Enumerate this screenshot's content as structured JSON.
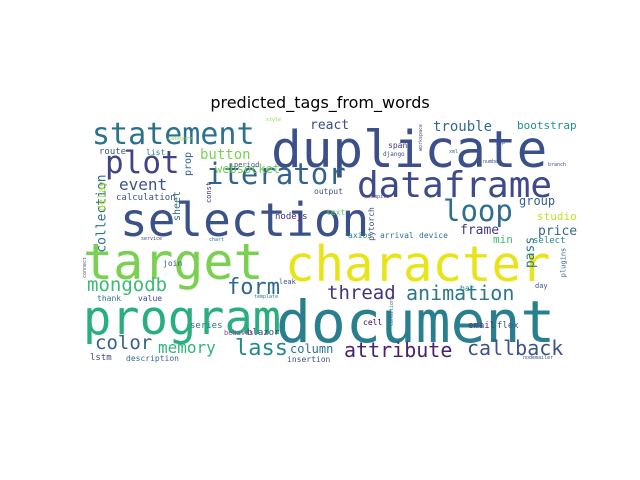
{
  "title": "predicted_tags_from_words",
  "words": [
    {
      "text": "document",
      "color": "#2a7f8e"
    },
    {
      "text": "selection",
      "color": "#3b518a"
    },
    {
      "text": "duplicate",
      "color": "#3b4f8a"
    },
    {
      "text": "character",
      "color": "#e8e419"
    },
    {
      "text": "target",
      "color": "#7ad151"
    },
    {
      "text": "program",
      "color": "#29af7f"
    },
    {
      "text": "dataframe",
      "color": "#3e4a89"
    },
    {
      "text": "statement",
      "color": "#2c728e"
    },
    {
      "text": "plot",
      "color": "#414487"
    },
    {
      "text": "iterator",
      "color": "#33638d"
    },
    {
      "text": "loop",
      "color": "#2e6e8e"
    },
    {
      "text": "animation",
      "color": "#2a778e"
    },
    {
      "text": "callback",
      "color": "#3a538b"
    },
    {
      "text": "attribute",
      "color": "#482173"
    },
    {
      "text": "form",
      "color": "#31688e"
    },
    {
      "text": "thread",
      "color": "#46337e"
    },
    {
      "text": "mongodb",
      "color": "#3bbb75"
    },
    {
      "text": "color",
      "color": "#34618d"
    },
    {
      "text": "lass",
      "color": "#23898e"
    },
    {
      "text": "memory",
      "color": "#2fb47c"
    },
    {
      "text": "event",
      "color": "#3b528b"
    },
    {
      "text": "button",
      "color": "#7ad151"
    },
    {
      "text": "react",
      "color": "#3e4c8a"
    },
    {
      "text": "trouble",
      "color": "#306a8e"
    },
    {
      "text": "bootstrap",
      "color": "#21918c"
    },
    {
      "text": "collection",
      "color": "#2c728e"
    },
    {
      "text": "websocket",
      "color": "#75d054"
    },
    {
      "text": "frame",
      "color": "#453781"
    },
    {
      "text": "group",
      "color": "#355f8d"
    },
    {
      "text": "price",
      "color": "#31688e"
    },
    {
      "text": "pass",
      "color": "#2a788e"
    },
    {
      "text": "studio",
      "color": "#c2df23"
    },
    {
      "text": "column",
      "color": "#2b748e"
    },
    {
      "text": "min",
      "color": "#3dbc74"
    },
    {
      "text": "select",
      "color": "#25848e"
    },
    {
      "text": "route",
      "color": "#3b528b"
    },
    {
      "text": "list",
      "color": "#25848e"
    },
    {
      "text": "sheet",
      "color": "#31688e"
    },
    {
      "text": "prop",
      "color": "#34618d"
    },
    {
      "text": "delay",
      "color": "#addc30"
    },
    {
      "text": "calculation",
      "color": "#3b528b"
    },
    {
      "text": "nodejs",
      "color": "#472d7b"
    },
    {
      "text": "lstm",
      "color": "#3e4989"
    },
    {
      "text": "description",
      "color": "#31688e"
    },
    {
      "text": "insertion",
      "color": "#3b528b"
    },
    {
      "text": "email",
      "color": "#463480"
    },
    {
      "text": "flex",
      "color": "#3b528b"
    },
    {
      "text": "series",
      "color": "#2c728e"
    },
    {
      "text": "blazor",
      "color": "#404387"
    },
    {
      "text": "output",
      "color": "#3b528b"
    },
    {
      "text": "span",
      "color": "#46327e"
    },
    {
      "text": "text",
      "color": "#5ec962"
    },
    {
      "text": "arrival",
      "color": "#2a788e"
    },
    {
      "text": "device",
      "color": "#2c728e"
    },
    {
      "text": "axios",
      "color": "#25848e"
    },
    {
      "text": "pytorch",
      "color": "#3e4989"
    },
    {
      "text": "bar",
      "color": "#25848e"
    },
    {
      "text": "cell",
      "color": "#440154"
    },
    {
      "text": "join",
      "color": "#3b528b"
    },
    {
      "text": "thank",
      "color": "#2a788e"
    },
    {
      "text": "value",
      "color": "#3e4989"
    },
    {
      "text": "behaves",
      "color": "#7e4ea0"
    },
    {
      "text": "leak",
      "color": "#3b528b"
    },
    {
      "text": "period",
      "color": "#3b528b"
    },
    {
      "text": "const",
      "color": "#472d7b"
    },
    {
      "text": "django",
      "color": "#3e4989"
    },
    {
      "text": "day",
      "color": "#3b528b"
    },
    {
      "text": "plugins",
      "color": "#31688e"
    },
    {
      "text": "category",
      "color": "#8fd744"
    },
    {
      "text": "style",
      "color": "#8fd744"
    },
    {
      "text": "template",
      "color": "#25848e"
    },
    {
      "text": "service",
      "color": "#3e4989"
    },
    {
      "text": "chart",
      "color": "#2c728e"
    },
    {
      "text": "branch",
      "color": "#3b528b"
    },
    {
      "text": "number",
      "color": "#3b528b"
    },
    {
      "text": "pip",
      "color": "#3b528b"
    },
    {
      "text": "xml",
      "color": "#2c728e"
    },
    {
      "text": "connect",
      "color": "#3e4989"
    },
    {
      "text": "condition",
      "color": "#31688e"
    },
    {
      "text": "workspace",
      "color": "#3e4989"
    },
    {
      "text": "compile",
      "color": "#3e4989"
    },
    {
      "text": "nodemailer",
      "color": "#3b528b"
    }
  ]
}
